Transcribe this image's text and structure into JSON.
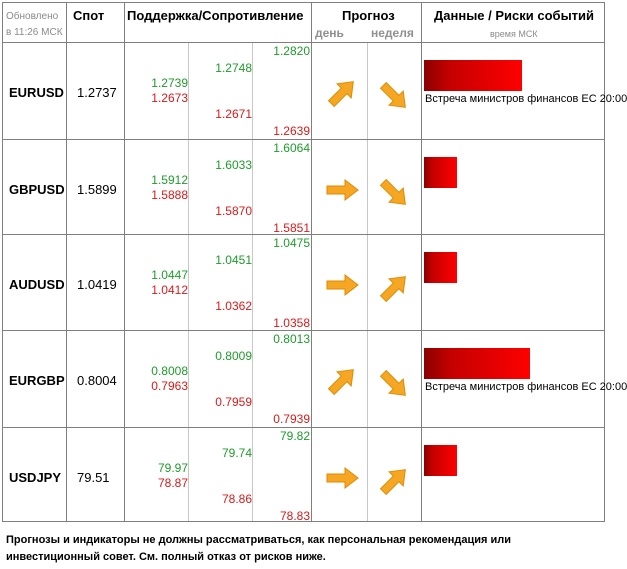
{
  "header": {
    "updated_line1": "Обновлено",
    "updated_line2": "в 11:26 МСК",
    "spot": "Спот",
    "sr": "Поддержка/Сопротивление",
    "forecast": "Прогноз",
    "day": "день",
    "week": "неделя",
    "events": "Данные / Риски событий",
    "time": "время МСК"
  },
  "rows": [
    {
      "pair": "EURUSD",
      "spot": "1.2737",
      "s1": "1.2739",
      "r1": "1.2673",
      "s2": "1.2748",
      "r2": "1.2671",
      "s3": "1.2820",
      "r3": "1.2639",
      "day": "up",
      "week": "down",
      "risk": 0.72,
      "event": "Встреча министров финансов ЕС 20:00"
    },
    {
      "pair": "GBPUSD",
      "spot": "1.5899",
      "s1": "1.5912",
      "r1": "1.5888",
      "s2": "1.6033",
      "r2": "1.5870",
      "s3": "1.6064",
      "r3": "1.5851",
      "day": "right",
      "week": "down",
      "risk": 0.24,
      "event": ""
    },
    {
      "pair": "AUDUSD",
      "spot": "1.0419",
      "s1": "1.0447",
      "r1": "1.0412",
      "s2": "1.0451",
      "r2": "1.0362",
      "s3": "1.0475",
      "r3": "1.0358",
      "day": "right",
      "week": "up",
      "risk": 0.24,
      "event": ""
    },
    {
      "pair": "EURGBP",
      "spot": "0.8004",
      "s1": "0.8008",
      "r1": "0.7963",
      "s2": "0.8009",
      "r2": "0.7959",
      "s3": "0.8013",
      "r3": "0.7939",
      "day": "up",
      "week": "down",
      "risk": 0.78,
      "event": "Встреча министров финансов ЕС 20:00"
    },
    {
      "pair": "USDJPY",
      "spot": "79.51",
      "s1": "79.97",
      "r1": "78.87",
      "s2": "79.74",
      "r2": "78.86",
      "s3": "79.82",
      "r3": "78.83",
      "day": "right",
      "week": "up",
      "risk": 0.24,
      "event": ""
    }
  ],
  "disclaimer": "Прогнозы и индикаторы не должны рассматриваться, как персональная рекомендация или инвестиционный совет. См. полный отказ от рисков ниже.",
  "colors": {
    "support": "#1f9b2b",
    "resistance": "#d81a1a",
    "arrow": "#f5a623",
    "bar": "#ff0000"
  }
}
